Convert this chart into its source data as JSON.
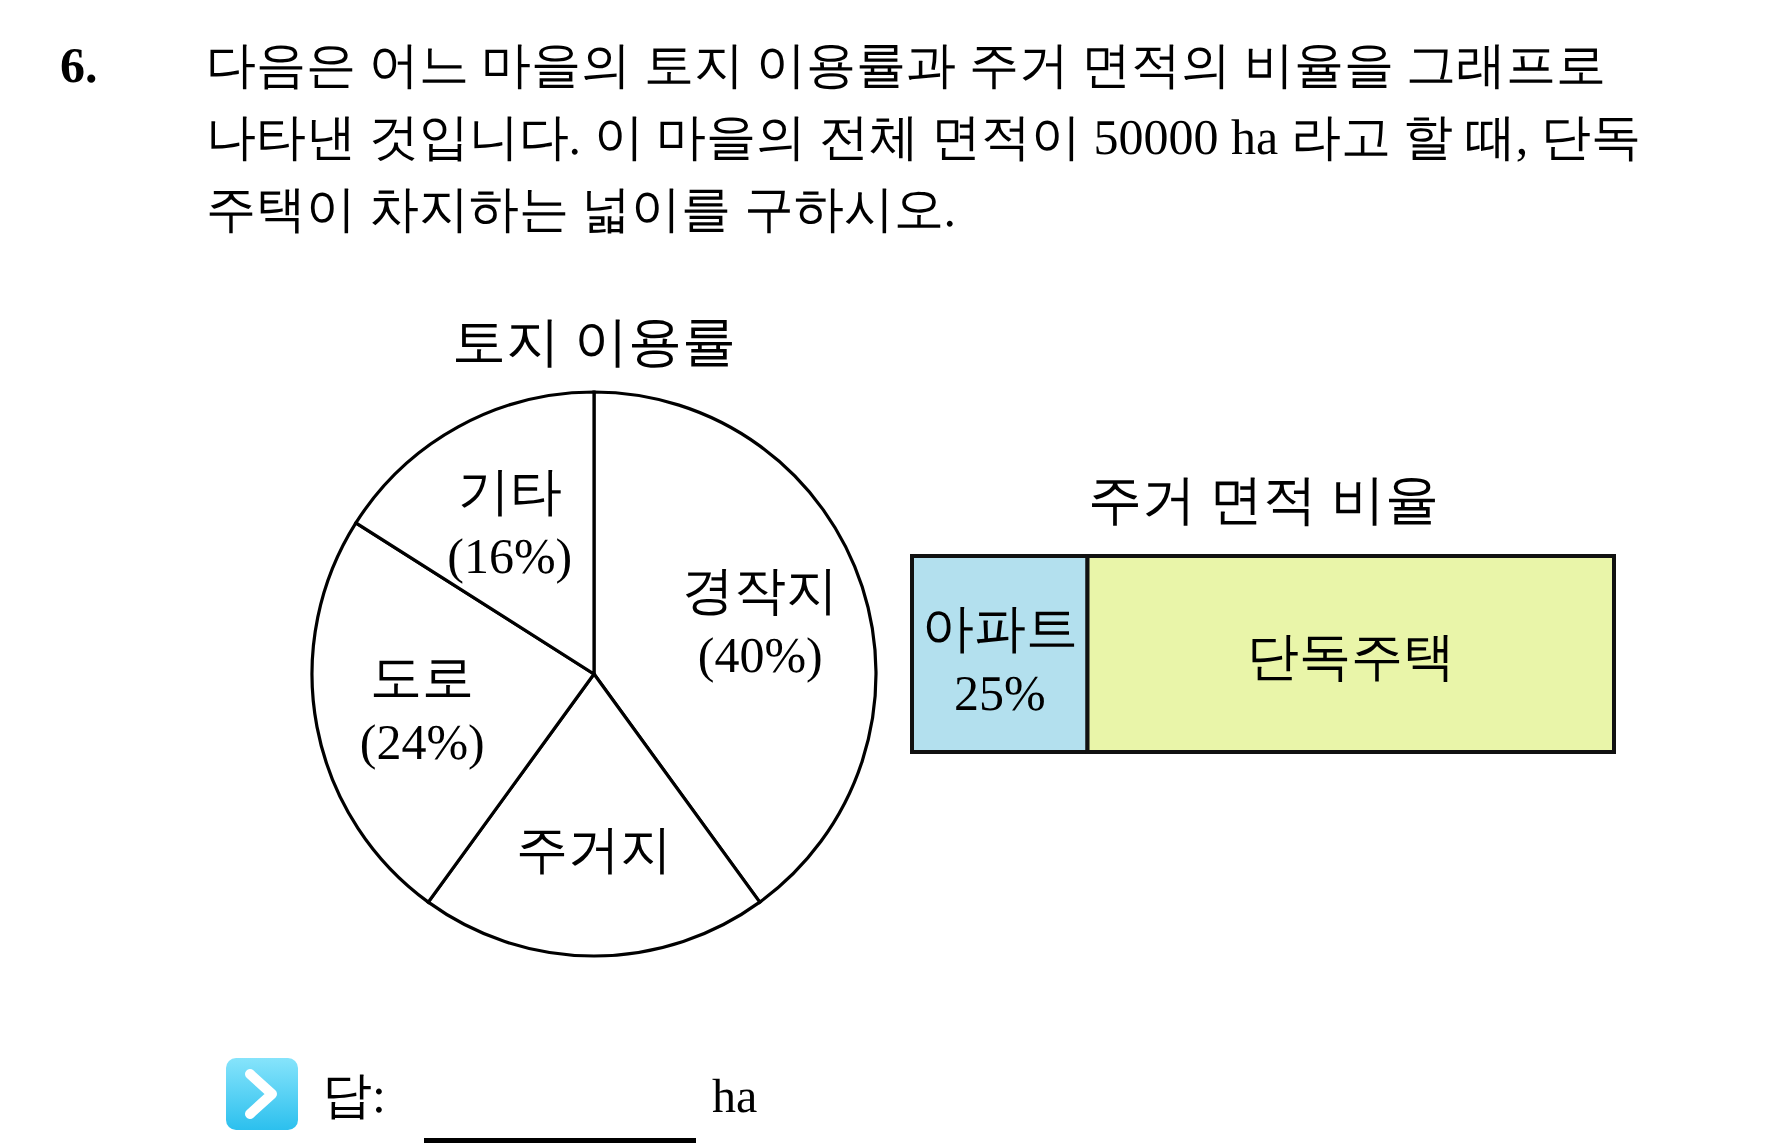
{
  "chart_data": [
    {
      "type": "pie",
      "title": "토지 이용률",
      "categories": [
        "경작지",
        "주거지",
        "도로",
        "기타"
      ],
      "values": [
        40,
        20,
        24,
        16
      ],
      "colors": [
        "#ffffff",
        "#ffffff",
        "#ffffff",
        "#ffffff"
      ],
      "value_labels": [
        "(40%)",
        null,
        "(24%)",
        "(16%)"
      ],
      "annotations": [
        "6.",
        "다음은 어느 마을의 토지 이용률과 주거 면적의 비율을 그래프로 나타낸 것입니다. 이 마을의 전체 면적이 50000 ha 라고 할 때, 단독주택이 차지하는 넓이를 구하시오.",
        "답:",
        "ha"
      ]
    },
    {
      "type": "bar",
      "orientation": "horizontal",
      "stacked": true,
      "title": "주거 면적 비율",
      "categories": [
        null
      ],
      "xlim": [
        0,
        100
      ],
      "series": [
        {
          "name": "아파트",
          "color": "#b3e0ee",
          "values": [
            25
          ],
          "value_labels": [
            "25%"
          ]
        },
        {
          "name": "단독주택",
          "color": "#e9f5a9",
          "values": [
            75
          ]
        }
      ]
    }
  ]
}
